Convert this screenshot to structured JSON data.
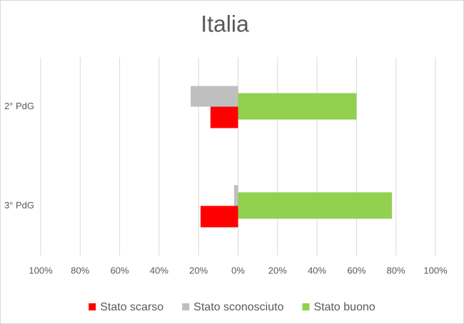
{
  "chart_data": {
    "type": "bar",
    "orientation": "horizontal",
    "title": "Italia",
    "categories": [
      "2° PdG",
      "3° PdG"
    ],
    "series": [
      {
        "name": "Stato scarso",
        "color": "#ff0000",
        "values": [
          -14,
          -19
        ]
      },
      {
        "name": "Stato sconosciuto",
        "color": "#bfbfbf",
        "values": [
          -24,
          -2
        ]
      },
      {
        "name": "Stato buono",
        "color": "#92d050",
        "values": [
          60,
          78
        ]
      }
    ],
    "xlim": [
      -100,
      100
    ],
    "xticks": [
      {
        "value": -100,
        "label": "100%"
      },
      {
        "value": -80,
        "label": "80%"
      },
      {
        "value": -60,
        "label": "60%"
      },
      {
        "value": -40,
        "label": "40%"
      },
      {
        "value": -20,
        "label": "20%"
      },
      {
        "value": 0,
        "label": "0%"
      },
      {
        "value": 20,
        "label": "20%"
      },
      {
        "value": 40,
        "label": "40%"
      },
      {
        "value": 60,
        "label": "60%"
      },
      {
        "value": 80,
        "label": "80%"
      },
      {
        "value": 100,
        "label": "100%"
      }
    ],
    "grid": true,
    "legend": "bottom"
  }
}
